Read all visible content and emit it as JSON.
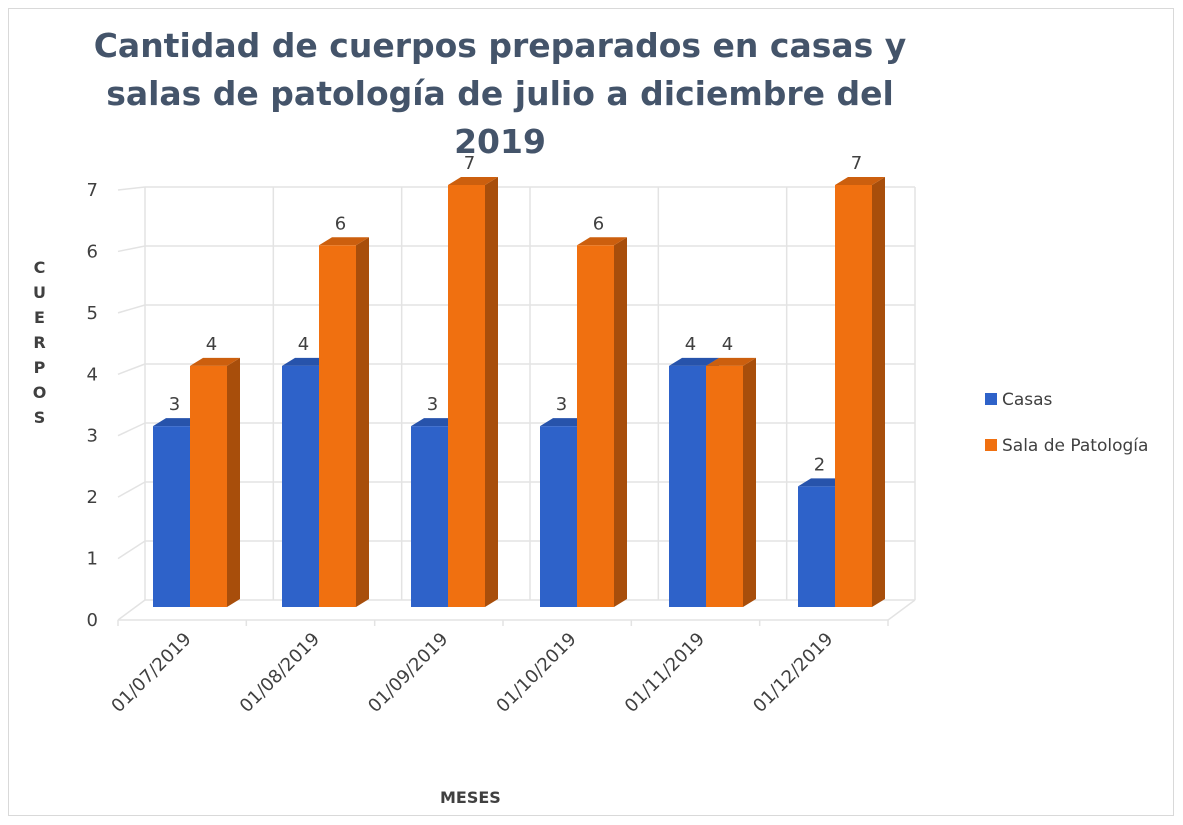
{
  "chart_data": {
    "type": "bar3d",
    "title": "Cantidad de cuerpos preparados en casas y salas de patología de julio a diciembre del 2019",
    "y_label": "CUERPOS",
    "x_label": "MESES",
    "categories": [
      "01/07/2019",
      "01/08/2019",
      "01/09/2019",
      "01/10/2019",
      "01/11/2019",
      "01/12/2019"
    ],
    "series": [
      {
        "name": "Casas",
        "color": "#2e62c9",
        "values": [
          3,
          4,
          3,
          3,
          4,
          2
        ]
      },
      {
        "name": "Sala de Patología",
        "color": "#f07010",
        "values": [
          4,
          6,
          7,
          6,
          4,
          7
        ]
      }
    ],
    "ylim": [
      0,
      7
    ],
    "yticks": [
      0,
      1,
      2,
      3,
      4,
      5,
      6,
      7
    ],
    "grid": true,
    "legend": "right"
  }
}
